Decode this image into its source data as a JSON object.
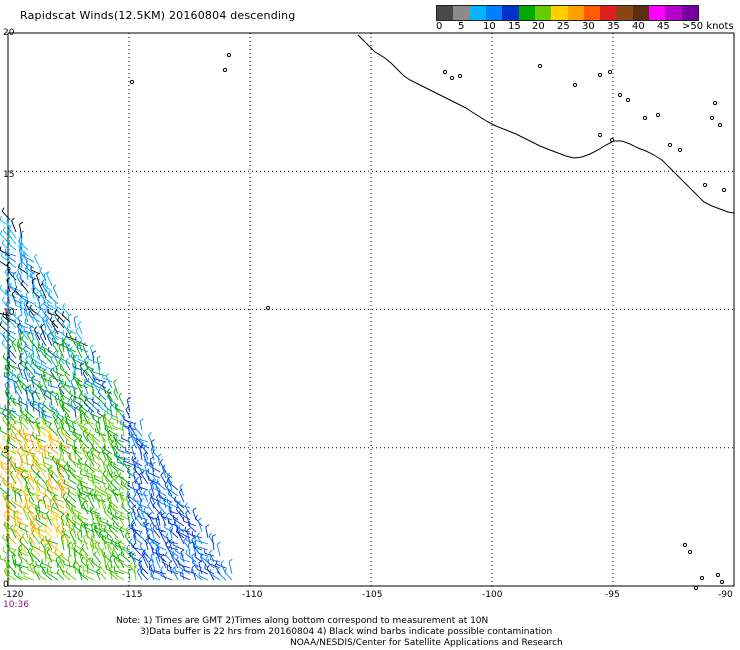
{
  "title": "Rapidscat Winds(12.5KM) 20160804 descending",
  "colorbar": {
    "colors": [
      "#4a4a4a",
      "#8c8c8c",
      "#00b4ff",
      "#0080ff",
      "#0033cc",
      "#00aa00",
      "#66cc00",
      "#ffd000",
      "#ffa000",
      "#ff5a00",
      "#e02020",
      "#8b4513",
      "#5a2d14",
      "#ff00ff",
      "#b400c8",
      "#7800a0"
    ],
    "labels": [
      "0",
      "5",
      "10",
      "15",
      "20",
      "25",
      "30",
      "35",
      "40",
      "45",
      ">50 knots"
    ]
  },
  "map": {
    "lon_range": [
      -120,
      -90
    ],
    "lat_range": [
      0,
      20
    ],
    "lat_labels": [
      "20",
      "15",
      "10",
      "5",
      "0"
    ],
    "lon_labels": [
      "-120",
      "-115",
      "-110",
      "-105",
      "-100",
      "-95",
      "-90"
    ],
    "grid_style": "dotted"
  },
  "pass_time": "10:36",
  "notes": {
    "line1": "Note: 1) Times are GMT 2)Times along bottom correspond to measurement at 10N",
    "line2": "3)Data buffer is 22 hrs from 20160804 4) Black wind barbs indicate possible contamination",
    "line3": "NOAA/NESDIS/Center for Satellite Applications and Research"
  }
}
